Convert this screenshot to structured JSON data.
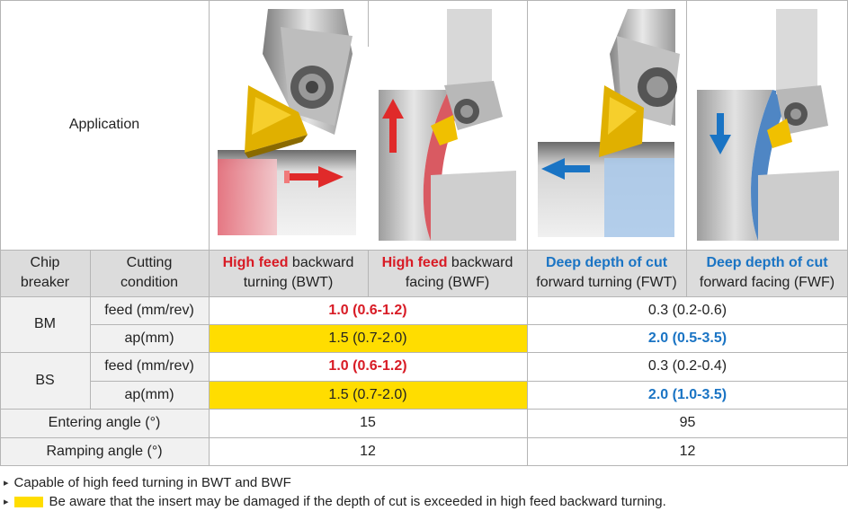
{
  "application_label": "Application",
  "header": {
    "chip_breaker": [
      "Chip",
      "breaker"
    ],
    "cutting_condition": [
      "Cutting",
      "condition"
    ],
    "columns": [
      {
        "highlight": "High feed",
        "rest": " backward",
        "line2": "turning (BWT)",
        "accent": "#d81b25"
      },
      {
        "highlight": "High feed",
        "rest": " backward",
        "line2": "facing (BWF)",
        "accent": "#d81b25"
      },
      {
        "highlight": "Deep depth of cut",
        "rest": "",
        "line2": "forward turning (FWT)",
        "accent": "#1a74c4"
      },
      {
        "highlight": "Deep depth of cut",
        "rest": "",
        "line2": "forward facing (FWF)",
        "accent": "#1a74c4"
      }
    ]
  },
  "rows": {
    "bm": {
      "name": "BM",
      "feed": {
        "label": "feed (mm/rev)",
        "high_feed": "1.0 (0.6-1.2)",
        "deep_cut": "0.3 (0.2-0.6)"
      },
      "ap": {
        "label": "ap(mm)",
        "high_feed": "1.5 (0.7-2.0)",
        "deep_cut": "2.0 (0.5-3.5)"
      }
    },
    "bs": {
      "name": "BS",
      "feed": {
        "label": "feed (mm/rev)",
        "high_feed": "1.0 (0.6-1.2)",
        "deep_cut": "0.3 (0.2-0.4)"
      },
      "ap": {
        "label": "ap(mm)",
        "high_feed": "1.5 (0.7-2.0)",
        "deep_cut": "2.0 (1.0-3.5)"
      }
    },
    "entering": {
      "label": "Entering angle (°)",
      "high_feed": "15",
      "deep_cut": "95"
    },
    "ramping": {
      "label": "Ramping angle (°)",
      "high_feed": "12",
      "deep_cut": "12"
    }
  },
  "notes": [
    "Capable of high feed turning in BWT and BWF",
    "Be aware that the insert may be damaged if the depth of cut is exceeded in high feed backward turning."
  ],
  "colors": {
    "header_bg": "#dcdcdc",
    "highlight_yellow": "#ffdd00",
    "accent_red": "#d81b25",
    "accent_blue": "#1a74c4"
  },
  "icons": [
    "bwt-illustration",
    "bwf-illustration",
    "fwt-illustration",
    "fwf-illustration"
  ]
}
